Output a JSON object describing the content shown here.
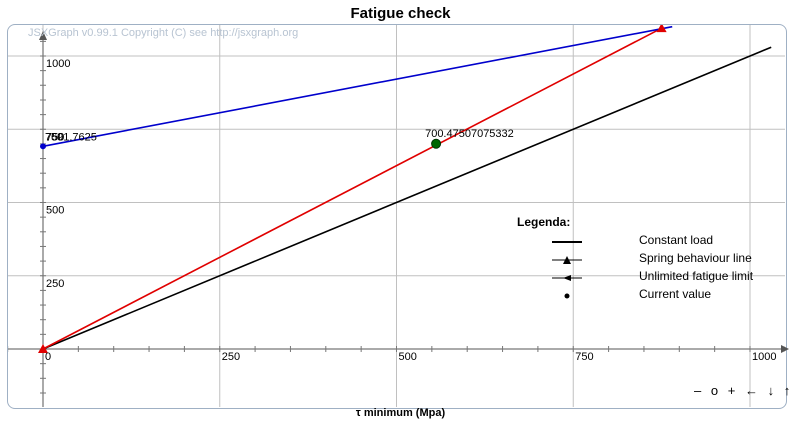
{
  "title": "Fatigue check",
  "copyright": "JSXGraph v0.99.1 Copyright (C) see http://jsxgraph.org",
  "chart_data": {
    "type": "line",
    "title": "Fatigue check",
    "xlabel": "τ minimum (Mpa)",
    "ylabel": "",
    "xlim": [
      -20,
      1040
    ],
    "ylim": [
      -190,
      1110
    ],
    "x_ticks": [
      "0",
      "250",
      "500",
      "750",
      "1000"
    ],
    "y_ticks": [
      "250",
      "500",
      "750",
      "1000"
    ],
    "grid": true,
    "series": [
      {
        "name": "Constant load",
        "color": "#000000",
        "x": [
          0,
          1030
        ],
        "y": [
          0,
          1030
        ]
      },
      {
        "name": "Spring behaviour line",
        "color": "#e00000",
        "x": [
          0,
          875
        ],
        "y": [
          0,
          1095
        ]
      },
      {
        "name": "Unlimited fatigue limit",
        "color": "#0000cc",
        "x": [
          0,
          890
        ],
        "y": [
          691.7625,
          1100
        ]
      },
      {
        "name": "Current value",
        "color": "#006600",
        "x": [
          556
        ],
        "y": [
          700.47507075332
        ]
      }
    ],
    "annotations": [
      {
        "text": "750",
        "x": 0,
        "y": 691.7625
      },
      {
        "text": "691.7625",
        "x": 0,
        "y": 691.7625
      },
      {
        "text": "700.47507075332",
        "x": 556,
        "y": 700.47507075332
      }
    ]
  },
  "legend": {
    "title": "Legenda:",
    "items": [
      {
        "label": "Constant load",
        "symbol": "line"
      },
      {
        "label": "Spring behaviour line",
        "symbol": "triangle"
      },
      {
        "label": "Unlimited fatigue limit",
        "symbol": "arrow"
      },
      {
        "label": "Current value",
        "symbol": "dot"
      }
    ]
  },
  "nav": [
    "–",
    "o",
    "+",
    "←",
    "↓",
    "↑"
  ]
}
